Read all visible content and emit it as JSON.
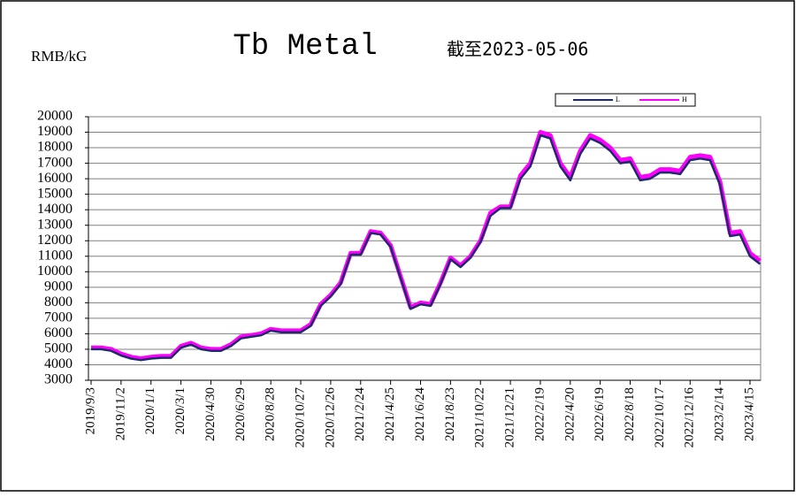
{
  "chart_data": {
    "type": "line",
    "title": "Tb Metal",
    "subtitle": "截至2023-05-06",
    "y_label": "RMB/kG",
    "categories": [
      "2019/9/3",
      null,
      null,
      "2019/11/2",
      null,
      null,
      "2020/1/1",
      null,
      null,
      "2020/3/1",
      null,
      null,
      "2020/4/30",
      null,
      null,
      "2020/6/29",
      null,
      null,
      "2020/8/28",
      null,
      null,
      "2020/10/27",
      null,
      null,
      "2020/12/26",
      null,
      null,
      "2021/2/24",
      null,
      null,
      "2021/4/25",
      null,
      null,
      "2021/6/24",
      null,
      null,
      "2021/8/23",
      null,
      null,
      "2021/10/22",
      null,
      null,
      "2021/12/21",
      null,
      null,
      "2022/2/19",
      null,
      null,
      "2022/4/20",
      null,
      null,
      "2022/6/19",
      null,
      null,
      "2022/8/18",
      null,
      null,
      "2022/10/17",
      null,
      null,
      "2022/12/16",
      null,
      null,
      "2023/2/14",
      null,
      null,
      "2023/4/15",
      null
    ],
    "series": [
      {
        "name": "H",
        "color": "#ff00ff",
        "values": [
          5100,
          5100,
          5000,
          4700,
          4500,
          4400,
          4500,
          4550,
          4550,
          5200,
          5400,
          5100,
          5000,
          5000,
          5300,
          5800,
          5900,
          6000,
          6300,
          6200,
          6200,
          6200,
          6600,
          7900,
          8500,
          9300,
          11200,
          11200,
          12600,
          12500,
          11700,
          9700,
          7700,
          8000,
          7900,
          9300,
          10900,
          10400,
          11000,
          12000,
          13800,
          14200,
          14200,
          16200,
          17000,
          19000,
          18800,
          17000,
          16100,
          17800,
          18800,
          18500,
          18000,
          17200,
          17300,
          16100,
          16200,
          16600,
          16600,
          16500,
          17400,
          17500,
          17400,
          15800,
          12500,
          12600,
          11200,
          10700
        ]
      },
      {
        "name": "L",
        "color": "#1f2a6b",
        "values": [
          5000,
          5000,
          4900,
          4600,
          4400,
          4300,
          4400,
          4450,
          4450,
          5100,
          5300,
          5000,
          4900,
          4900,
          5200,
          5700,
          5800,
          5900,
          6200,
          6100,
          6100,
          6100,
          6500,
          7800,
          8400,
          9200,
          11100,
          11100,
          12500,
          12400,
          11600,
          9600,
          7600,
          7900,
          7800,
          9200,
          10800,
          10300,
          10900,
          11900,
          13600,
          14100,
          14100,
          16000,
          16800,
          18800,
          18600,
          16800,
          15900,
          17600,
          18600,
          18300,
          17800,
          17000,
          17100,
          15900,
          16000,
          16400,
          16400,
          16300,
          17200,
          17300,
          17200,
          15600,
          12300,
          12400,
          11000,
          10500
        ]
      }
    ],
    "ylim": [
      3000,
      20000
    ],
    "yticks": [
      3000,
      4000,
      5000,
      6000,
      7000,
      8000,
      9000,
      10000,
      11000,
      12000,
      13000,
      14000,
      15000,
      16000,
      17000,
      18000,
      19000,
      20000
    ],
    "grid": true,
    "legend": "top-right"
  }
}
